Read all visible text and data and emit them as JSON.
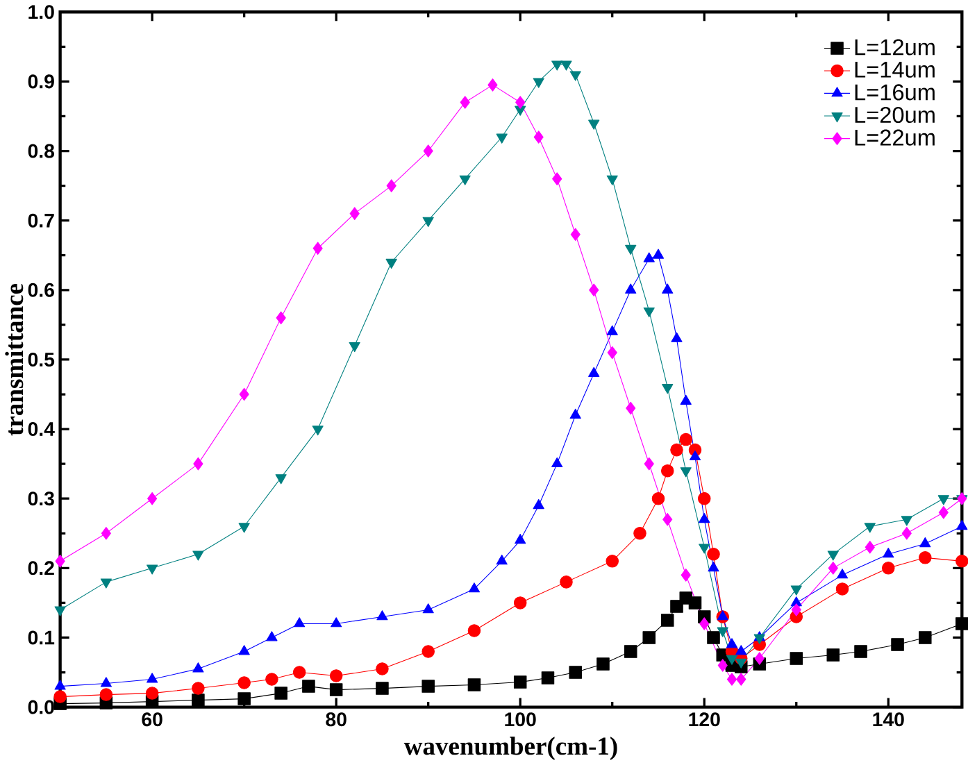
{
  "chart_data": {
    "type": "line",
    "xlabel": "wavenumber(cm-1)",
    "ylabel": "transmittance",
    "xlim": [
      50,
      148
    ],
    "ylim": [
      0,
      1
    ],
    "xticks": [
      60,
      80,
      100,
      120,
      140
    ],
    "yticks": [
      {
        "value": 0,
        "label": "0.0"
      },
      0.1,
      0.2,
      0.3,
      0.4,
      0.5,
      0.6,
      0.7,
      0.8,
      0.9,
      {
        "value": 1,
        "label": "1.0"
      }
    ],
    "legend": "top right",
    "grid": false,
    "line_style": "solid",
    "series": [
      {
        "name": "L=12um",
        "color": "#000000",
        "marker": "square",
        "x": [
          50,
          55,
          60,
          65,
          70,
          74,
          77,
          80,
          85,
          90,
          95,
          100,
          103,
          106,
          109,
          112,
          114,
          116,
          117,
          118,
          119,
          120,
          121,
          122,
          123,
          124,
          126,
          130,
          134,
          137,
          141,
          144,
          148
        ],
        "values": [
          0.005,
          0.006,
          0.008,
          0.01,
          0.012,
          0.02,
          0.03,
          0.025,
          0.027,
          0.03,
          0.032,
          0.036,
          0.042,
          0.05,
          0.062,
          0.08,
          0.1,
          0.125,
          0.145,
          0.157,
          0.15,
          0.13,
          0.1,
          0.075,
          0.06,
          0.058,
          0.062,
          0.07,
          0.075,
          0.08,
          0.09,
          0.1,
          0.12
        ]
      },
      {
        "name": "L=14um",
        "color": "#ff0000",
        "marker": "circle",
        "x": [
          50,
          55,
          60,
          65,
          70,
          73,
          76,
          80,
          85,
          90,
          95,
          100,
          105,
          110,
          113,
          115,
          116,
          117,
          118,
          119,
          120,
          121,
          122,
          123,
          124,
          126,
          130,
          135,
          140,
          144,
          148
        ],
        "values": [
          0.015,
          0.018,
          0.02,
          0.027,
          0.035,
          0.04,
          0.05,
          0.045,
          0.055,
          0.08,
          0.11,
          0.15,
          0.18,
          0.21,
          0.25,
          0.3,
          0.34,
          0.37,
          0.385,
          0.37,
          0.3,
          0.22,
          0.13,
          0.08,
          0.07,
          0.09,
          0.13,
          0.17,
          0.2,
          0.215,
          0.21
        ]
      },
      {
        "name": "L=16um",
        "color": "#0000ff",
        "marker": "triangle",
        "x": [
          50,
          55,
          60,
          65,
          70,
          73,
          76,
          80,
          85,
          90,
          95,
          98,
          100,
          102,
          104,
          106,
          108,
          110,
          112,
          114,
          115,
          116,
          117,
          118,
          119,
          120,
          121,
          122,
          123,
          124,
          126,
          130,
          135,
          140,
          144,
          148
        ],
        "values": [
          0.03,
          0.034,
          0.04,
          0.055,
          0.08,
          0.1,
          0.12,
          0.12,
          0.13,
          0.14,
          0.17,
          0.21,
          0.24,
          0.29,
          0.35,
          0.42,
          0.48,
          0.54,
          0.6,
          0.645,
          0.65,
          0.6,
          0.53,
          0.44,
          0.36,
          0.27,
          0.2,
          0.13,
          0.09,
          0.08,
          0.1,
          0.15,
          0.19,
          0.22,
          0.235,
          0.26
        ]
      },
      {
        "name": "L=20um",
        "color": "#008080",
        "marker": "triangle-down",
        "x": [
          50,
          55,
          60,
          65,
          70,
          74,
          78,
          82,
          86,
          90,
          94,
          98,
          100,
          102,
          104,
          105,
          106,
          108,
          110,
          112,
          114,
          116,
          118,
          120,
          122,
          123,
          124,
          126,
          130,
          134,
          138,
          142,
          146,
          148
        ],
        "values": [
          0.14,
          0.18,
          0.2,
          0.22,
          0.26,
          0.33,
          0.4,
          0.52,
          0.64,
          0.7,
          0.76,
          0.82,
          0.86,
          0.9,
          0.925,
          0.925,
          0.91,
          0.84,
          0.76,
          0.66,
          0.57,
          0.46,
          0.34,
          0.23,
          0.11,
          0.07,
          0.065,
          0.1,
          0.17,
          0.22,
          0.26,
          0.27,
          0.3,
          0.3
        ]
      },
      {
        "name": "L=22um",
        "color": "#ff00ff",
        "marker": "diamond",
        "x": [
          50,
          55,
          60,
          65,
          70,
          74,
          78,
          82,
          86,
          90,
          94,
          97,
          100,
          102,
          104,
          106,
          108,
          110,
          112,
          114,
          116,
          118,
          120,
          122,
          123,
          124,
          126,
          130,
          134,
          138,
          142,
          146,
          148
        ],
        "values": [
          0.21,
          0.25,
          0.3,
          0.35,
          0.45,
          0.56,
          0.66,
          0.71,
          0.75,
          0.8,
          0.87,
          0.895,
          0.87,
          0.82,
          0.76,
          0.68,
          0.6,
          0.51,
          0.43,
          0.35,
          0.27,
          0.19,
          0.12,
          0.06,
          0.04,
          0.04,
          0.07,
          0.14,
          0.2,
          0.23,
          0.25,
          0.28,
          0.3
        ]
      }
    ]
  }
}
